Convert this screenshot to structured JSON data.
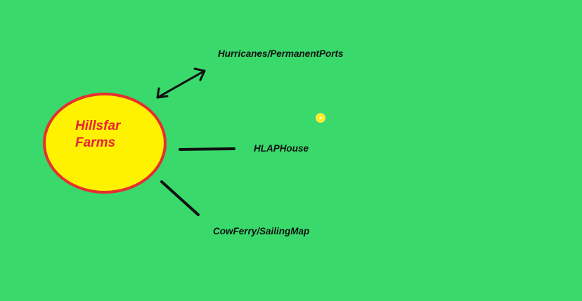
{
  "center": {
    "line1": "Hillsfar",
    "line2": "Farms",
    "fill_color": "#fff200",
    "border_color": "#e5302f",
    "text_color": "#e8213a"
  },
  "nodes": [
    {
      "label": "Hurricanes/PermanentPorts",
      "connector": "double-arrow"
    },
    {
      "label": "HLAPHouse",
      "connector": "line"
    },
    {
      "label": "CowFerry/SailingMap",
      "connector": "line"
    }
  ],
  "background_color": "#39d96b",
  "dot_color": "#fff200"
}
